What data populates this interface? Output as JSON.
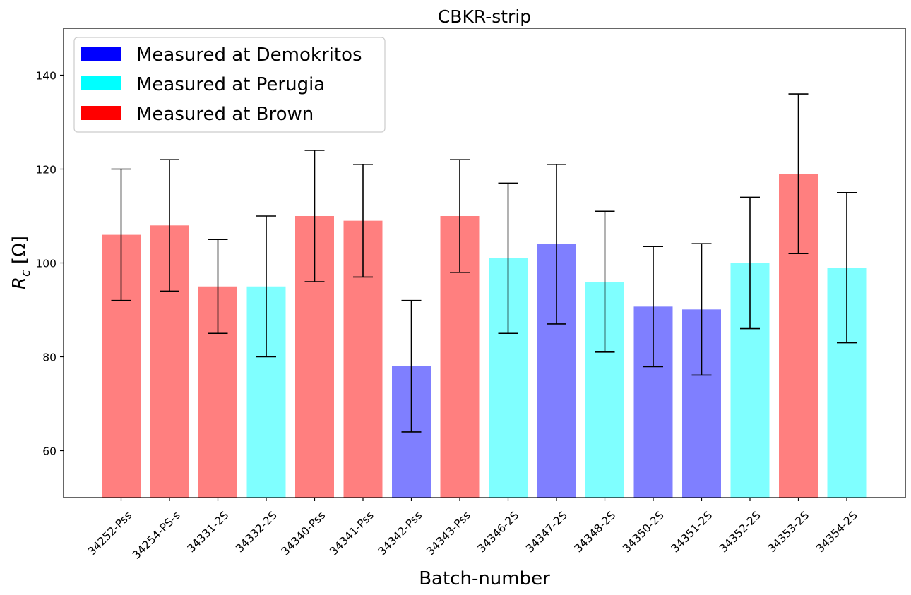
{
  "chart_data": {
    "type": "bar",
    "title": "CBKR-strip",
    "xlabel": "Batch-number",
    "ylabel_main": "R",
    "ylabel_sub": "c",
    "ylabel_unit": "[Ω]",
    "ylim": [
      50,
      150
    ],
    "yticks": [
      60,
      80,
      100,
      120,
      140
    ],
    "categories": [
      "34252-Pss",
      "34254-PS-s",
      "34331-2S",
      "34332-2S",
      "34340-Pss",
      "34341-Pss",
      "34342-Pss",
      "34343-Pss",
      "34346-2S",
      "34347-2S",
      "34348-2S",
      "34350-2S",
      "34351-2S",
      "34352-2S",
      "34353-2S",
      "34354-2S"
    ],
    "values": [
      106,
      108,
      95,
      95,
      110,
      109,
      78,
      110,
      101,
      104,
      96,
      90.7,
      90.1,
      100,
      119,
      99
    ],
    "errors": [
      14,
      14,
      10,
      15,
      14,
      12,
      14,
      12,
      16,
      17,
      15,
      12.8,
      14,
      14,
      17,
      16
    ],
    "sites": [
      "Brown",
      "Brown",
      "Brown",
      "Perugia",
      "Brown",
      "Brown",
      "Demokritos",
      "Brown",
      "Perugia",
      "Demokritos",
      "Perugia",
      "Demokritos",
      "Demokritos",
      "Perugia",
      "Brown",
      "Perugia"
    ],
    "legend": {
      "placement": "top-left",
      "entries": [
        {
          "key": "Demokritos",
          "label": "Measured at Demokritos",
          "color": "#0000ff"
        },
        {
          "key": "Perugia",
          "label": "Measured at Perugia",
          "color": "#00ffff"
        },
        {
          "key": "Brown",
          "label": "Measured at Brown",
          "color": "#ff0000"
        }
      ]
    },
    "bar_opacity": 0.5,
    "grid": false
  }
}
